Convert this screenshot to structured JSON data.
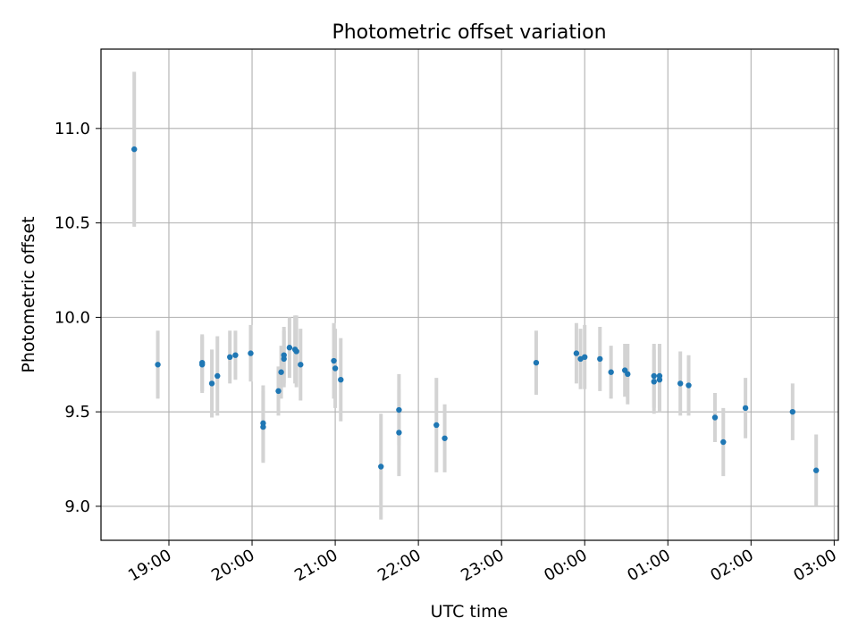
{
  "chart_data": {
    "type": "scatter",
    "title": "Photometric offset variation",
    "xlabel": "UTC time",
    "ylabel": "Photometric offset",
    "x_axis_kind": "time",
    "xlim": [
      "18:11",
      "27:03"
    ],
    "ylim": [
      8.82,
      11.42
    ],
    "x_ticks": [
      "19:00",
      "20:00",
      "21:00",
      "22:00",
      "23:00",
      "00:00",
      "01:00",
      "02:00",
      "03:00"
    ],
    "y_ticks": [
      "9.0",
      "9.5",
      "10.0",
      "10.5",
      "11.0"
    ],
    "grid": true,
    "point_color": "#1f77b4",
    "errorbar_color": "#d3d3d3",
    "series": [
      {
        "x": [
          "18:35",
          "18:52",
          "19:24",
          "19:24",
          "19:31",
          "19:35",
          "19:44",
          "19:48",
          "19:59",
          "20:08",
          "20:08",
          "20:19",
          "20:21",
          "20:23",
          "20:23",
          "20:27",
          "20:31",
          "20:32",
          "20:35",
          "20:59",
          "21:00",
          "21:04",
          "21:33",
          "21:46",
          "21:46",
          "22:13",
          "22:19",
          "23:25",
          "23:54",
          "23:57",
          "24:00",
          "24:11",
          "24:19",
          "24:29",
          "24:31",
          "24:50",
          "24:50",
          "24:54",
          "24:54",
          "25:09",
          "25:15",
          "25:34",
          "25:40",
          "25:56",
          "26:30",
          "26:47"
        ],
        "y": [
          10.89,
          9.75,
          9.76,
          9.75,
          9.65,
          9.69,
          9.79,
          9.8,
          9.81,
          9.44,
          9.42,
          9.61,
          9.71,
          9.8,
          9.78,
          9.84,
          9.83,
          9.82,
          9.75,
          9.77,
          9.73,
          9.67,
          9.21,
          9.51,
          9.39,
          9.43,
          9.36,
          9.76,
          9.81,
          9.78,
          9.79,
          9.78,
          9.71,
          9.72,
          9.7,
          9.69,
          9.66,
          9.69,
          9.67,
          9.65,
          9.64,
          9.47,
          9.34,
          9.52,
          9.5,
          9.19
        ],
        "err": [
          0.41,
          0.18,
          0.15,
          0.15,
          0.18,
          0.21,
          0.14,
          0.13,
          0.15,
          0.2,
          0.19,
          0.13,
          0.14,
          0.15,
          0.15,
          0.16,
          0.18,
          0.19,
          0.19,
          0.2,
          0.21,
          0.22,
          0.28,
          0.19,
          0.23,
          0.25,
          0.18,
          0.17,
          0.16,
          0.16,
          0.17,
          0.17,
          0.14,
          0.14,
          0.16,
          0.17,
          0.17,
          0.17,
          0.17,
          0.17,
          0.16,
          0.13,
          0.18,
          0.16,
          0.15,
          0.19
        ]
      }
    ]
  }
}
